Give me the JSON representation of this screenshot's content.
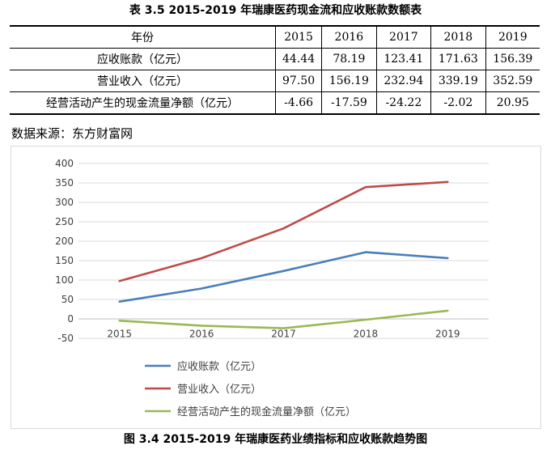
{
  "table_title": "表 3.5 2015-2019 年瑞康医药现金流和应收账款数额表",
  "table": {
    "header": [
      "年份",
      "2015",
      "2016",
      "2017",
      "2018",
      "2019"
    ],
    "rows": [
      [
        "应收账款（亿元）",
        "44.44",
        "78.19",
        "123.41",
        "171.63",
        "156.39"
      ],
      [
        "营业收入（亿元）",
        "97.50",
        "156.19",
        "232.94",
        "339.19",
        "352.59"
      ],
      [
        "经营活动产生的现金流量净额（亿元）",
        "-4.66",
        "-17.59",
        "-24.22",
        "-2.02",
        "20.95"
      ]
    ]
  },
  "source": "数据来源：东方财富网",
  "figure_title": "图 3.4 2015-2019 年瑞康医药业绩指标和应收账款趋势图",
  "chart_data": {
    "type": "line",
    "categories": [
      "2015",
      "2016",
      "2017",
      "2018",
      "2019"
    ],
    "series": [
      {
        "name": "应收账款（亿元）",
        "color": "#4a7ebb",
        "values": [
          44.44,
          78.19,
          123.41,
          171.63,
          156.39
        ]
      },
      {
        "name": "营业收入（亿元）",
        "color": "#be4b48",
        "values": [
          97.5,
          156.19,
          232.94,
          339.19,
          352.59
        ]
      },
      {
        "name": "经营活动产生的现金流量净额（亿元）",
        "color": "#98b954",
        "values": [
          -4.66,
          -17.59,
          -24.22,
          -2.02,
          20.95
        ]
      }
    ],
    "ylim": [
      -50,
      400
    ],
    "yticks": [
      -50,
      0,
      50,
      100,
      150,
      200,
      250,
      300,
      350,
      400
    ],
    "grid": true,
    "legend": "bottom",
    "title": "",
    "xlabel": "",
    "ylabel": ""
  }
}
